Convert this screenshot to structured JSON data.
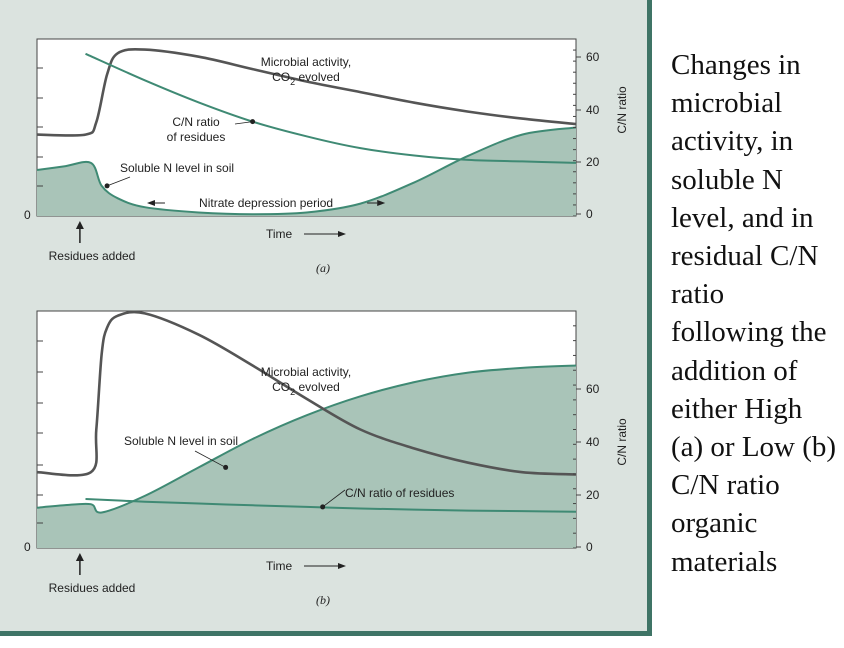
{
  "caption": "Changes in microbial activity, in soluble N level, and in residual C/N ratio following the addition of either High (a) or Low (b) C/N ratio organic materials",
  "colors": {
    "microbial": "#555555",
    "cn": "#3f8a74",
    "soluble_fill": "#a9c4b8",
    "soluble_line": "#3f8a74",
    "panel_bg": "#dbe3df",
    "plot_bg": "#ffffff",
    "frame": "#3f7466"
  },
  "chart_data": [
    {
      "type": "line",
      "panel_label": "(a)",
      "xlabel": "Time",
      "ylabel_right": "C/N ratio",
      "y_left_zero_label": "0",
      "right_ticks": [
        "0",
        "20",
        "40",
        "60"
      ],
      "right_ylim": [
        0,
        60
      ],
      "event_label": "Residues added",
      "event_x": 0.1,
      "period_label": "Nitrate depression period",
      "period_range": [
        0.23,
        0.62
      ],
      "series": [
        {
          "name": "Microbial activity, CO2 evolved",
          "label_line1": "Microbial activity,",
          "label_line2_prefix": "CO",
          "label_line2_sub": "2",
          "label_line2_suffix": " evolved",
          "x": [
            0,
            0.09,
            0.11,
            0.13,
            0.15,
            0.2,
            0.3,
            0.4,
            0.5,
            0.6,
            0.7,
            0.8,
            0.9,
            1.0
          ],
          "y": [
            0.46,
            0.46,
            0.53,
            0.8,
            0.92,
            0.94,
            0.9,
            0.83,
            0.76,
            0.7,
            0.64,
            0.59,
            0.55,
            0.52
          ]
        },
        {
          "name": "C/N ratio of residues",
          "label_line1": "C/N ratio",
          "label_line2": "of residues",
          "x": [
            0.09,
            0.2,
            0.3,
            0.4,
            0.5,
            0.6,
            0.7,
            0.8,
            0.9,
            1.0
          ],
          "y": [
            55,
            46,
            38.5,
            32,
            27,
            23,
            20.5,
            19,
            18.5,
            18
          ]
        },
        {
          "name": "Soluble N level in soil",
          "x": [
            0,
            0.05,
            0.1,
            0.12,
            0.15,
            0.2,
            0.3,
            0.4,
            0.5,
            0.6,
            0.7,
            0.8,
            0.9,
            1.0
          ],
          "y": [
            0.26,
            0.28,
            0.3,
            0.17,
            0.1,
            0.05,
            0.02,
            0.01,
            0.02,
            0.07,
            0.19,
            0.34,
            0.46,
            0.5
          ]
        }
      ]
    },
    {
      "type": "line",
      "panel_label": "(b)",
      "xlabel": "Time",
      "ylabel_right": "C/N ratio",
      "y_left_zero_label": "0",
      "right_ticks": [
        "0",
        "20",
        "40",
        "60"
      ],
      "right_ylim": [
        0,
        90
      ],
      "event_label": "Residues added",
      "event_x": 0.1,
      "series": [
        {
          "name": "Microbial activity, CO2 evolved",
          "label_line1": "Microbial activity,",
          "label_line2_prefix": "CO",
          "label_line2_sub": "2",
          "label_line2_suffix": " evolved",
          "x": [
            0,
            0.1,
            0.11,
            0.12,
            0.13,
            0.15,
            0.2,
            0.3,
            0.4,
            0.5,
            0.6,
            0.7,
            0.8,
            0.9,
            1.0
          ],
          "y": [
            0.32,
            0.32,
            0.5,
            0.82,
            0.93,
            0.98,
            0.99,
            0.9,
            0.77,
            0.63,
            0.5,
            0.42,
            0.36,
            0.32,
            0.31
          ]
        },
        {
          "name": "C/N ratio of residues",
          "label": "C/N ratio of residues",
          "x": [
            0.09,
            0.2,
            0.3,
            0.4,
            0.5,
            0.6,
            0.7,
            0.8,
            0.9,
            1.0
          ],
          "y": [
            18.6,
            17.6,
            16.9,
            16.2,
            15.6,
            15,
            14.6,
            14.2,
            14,
            13.8
          ]
        },
        {
          "name": "Soluble N level in soil",
          "x": [
            0,
            0.05,
            0.1,
            0.12,
            0.2,
            0.3,
            0.4,
            0.5,
            0.6,
            0.7,
            0.8,
            0.9,
            1.0
          ],
          "y": [
            0.17,
            0.18,
            0.185,
            0.15,
            0.22,
            0.34,
            0.46,
            0.56,
            0.64,
            0.7,
            0.74,
            0.76,
            0.77
          ]
        }
      ]
    }
  ]
}
